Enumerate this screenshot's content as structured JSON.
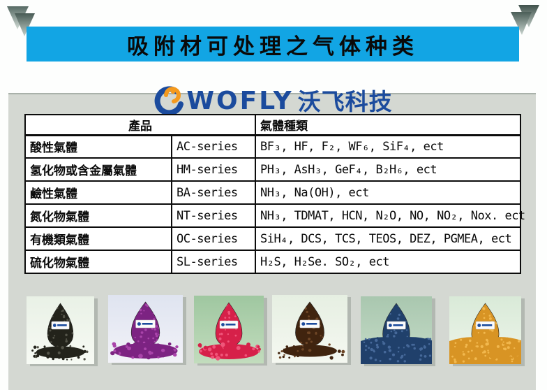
{
  "banner": {
    "title": "吸附材可处理之气体种类",
    "bg_color": "#12a5e4",
    "text_color": "#0a0a0a"
  },
  "logo": {
    "brand": "WOFLY",
    "brand_cn": "沃飞科技",
    "color": "#1b4b9d",
    "icon": "swirl-globe-icon",
    "icon_accent": "#f59a1d"
  },
  "table": {
    "header": {
      "product": "產品",
      "gas_types": "氣體種類"
    },
    "rows": [
      {
        "category": "酸性氣體",
        "series": "AC-series",
        "gases": "BF₃, HF, F₂, WF₆, SiF₄, ect"
      },
      {
        "category": "氢化物或含金屬氣體",
        "series": "HM-series",
        "gases": "PH₃, AsH₃, GeF₄, B₂H₆, ect"
      },
      {
        "category": "鹼性氣體",
        "series": "BA-series",
        "gases": "NH₃, Na(OH), ect"
      },
      {
        "category": "氮化物氣體",
        "series": "NT-series",
        "gases": "NH₃, TDMAT, HCN, N₂O, NO, NO₂, Nox. ect"
      },
      {
        "category": "有機類氣體",
        "series": "OC-series",
        "gases": "SiH₄, DCS, TCS, TEOS, DEZ, PGMEA, ect"
      },
      {
        "category": "硫化物氣體",
        "series": "SL-series",
        "gases": "H₂S, H₂Se. SO₂, ect"
      }
    ]
  },
  "photos": [
    {
      "label": "black adsorbent granules",
      "bg_top": "#e9f1e6",
      "bg_bottom": "#f7faf4",
      "granule": "#23231b",
      "granule_hi": "#55554a",
      "pile": "scatter"
    },
    {
      "label": "purple adsorbent flakes",
      "bg_top": "#dfe4f0",
      "bg_bottom": "#f2f2f8",
      "granule": "#7c2382",
      "granule_hi": "#a944aa",
      "pile": "flaky"
    },
    {
      "label": "red adsorbent granules",
      "bg_top": "#9fc7a0",
      "bg_bottom": "#c2dcbd",
      "granule": "#d62049",
      "granule_hi": "#f0557a",
      "pile": "flaky"
    },
    {
      "label": "brown adsorbent granules",
      "bg_top": "#e6efe2",
      "bg_bottom": "#f5f8f1",
      "granule": "#40240f",
      "granule_hi": "#6e4626",
      "pile": "scatter"
    },
    {
      "label": "blue adsorbent granules",
      "bg_top": "#a9c7af",
      "bg_bottom": "#c6dcc8",
      "granule": "#20406b",
      "granule_hi": "#46699a",
      "pile": "mound"
    },
    {
      "label": "orange adsorbent granules",
      "bg_top": "#d9ead8",
      "bg_bottom": "#eef5ea",
      "granule": "#d89424",
      "granule_hi": "#f2b84e",
      "pile": "mound"
    }
  ],
  "decor": {
    "corner_triangles": "double-down-triangle",
    "panel_color": "#d4d8d2"
  }
}
